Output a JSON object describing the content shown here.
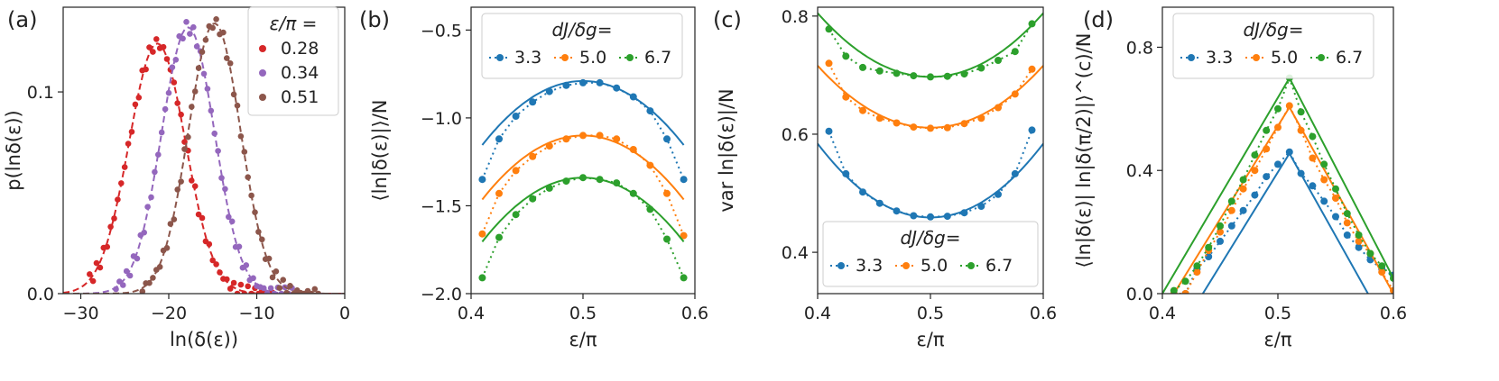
{
  "colors": {
    "red": "#d62728",
    "purple": "#9467bd",
    "brown": "#8c564b",
    "blue": "#1f77b4",
    "orange": "#ff7f0e",
    "green": "#2ca02c"
  },
  "chart_data": [
    {
      "panel": "(a)",
      "type": "scatter",
      "xlabel": "ln(δ(ε))",
      "ylabel": "p(lnδ(ε))",
      "xlim": [
        -32,
        0
      ],
      "ylim": [
        0,
        0.142
      ],
      "xticks": [
        -30,
        -20,
        -10,
        0
      ],
      "xtick_labels": [
        "−30",
        "−20",
        "−10",
        "0"
      ],
      "yticks": [
        0,
        0.1
      ],
      "ytick_labels": [
        "0.0",
        "0.1"
      ],
      "grid": false,
      "legend_title": "ε/π =",
      "legend_position": "top-right",
      "series": [
        {
          "name": "0.28",
          "color": "red",
          "peak_x": -21.3,
          "peak_y": 0.124,
          "sigma": 3.2,
          "x_range": [
            -29,
            -8
          ]
        },
        {
          "name": "0.34",
          "color": "purple",
          "peak_x": -17.8,
          "peak_y": 0.132,
          "sigma": 3.0,
          "x_range": [
            -26,
            -5.5
          ]
        },
        {
          "name": "0.51",
          "color": "brown",
          "peak_x": -14.8,
          "peak_y": 0.134,
          "sigma": 2.95,
          "x_range": [
            -23,
            -3
          ]
        }
      ]
    },
    {
      "panel": "(b)",
      "type": "line",
      "xlabel": "ε/π",
      "ylabel": "⟨ln|δ(ε)|⟩/N",
      "xlim": [
        0.4,
        0.6
      ],
      "ylim": [
        -2.0,
        -0.37
      ],
      "xticks": [
        0.4,
        0.5,
        0.6
      ],
      "xtick_labels": [
        "0.4",
        "0.5",
        "0.6"
      ],
      "yticks": [
        -2.0,
        -1.5,
        -1.0,
        -0.5
      ],
      "ytick_labels": [
        "−2.0",
        "−1.5",
        "−1.0",
        "−0.5"
      ],
      "grid": false,
      "legend_title": "dJ/δg=",
      "legend_position": "top",
      "x": [
        0.41,
        0.425,
        0.44,
        0.455,
        0.47,
        0.485,
        0.5,
        0.515,
        0.53,
        0.545,
        0.56,
        0.575,
        0.59
      ],
      "series": [
        {
          "name": "3.3",
          "color": "blue",
          "points": [
            -1.35,
            -1.12,
            -0.99,
            -0.91,
            -0.85,
            -0.815,
            -0.8,
            -0.8,
            -0.83,
            -0.88,
            -0.96,
            -1.12,
            -1.35
          ],
          "fit_peak": -0.79,
          "fit_curvature": 45,
          "fit_x": [
            0.41,
            0.59
          ]
        },
        {
          "name": "5.0",
          "color": "orange",
          "points": [
            -1.66,
            -1.43,
            -1.3,
            -1.22,
            -1.16,
            -1.12,
            -1.1,
            -1.1,
            -1.12,
            -1.18,
            -1.27,
            -1.43,
            -1.67
          ],
          "fit_peak": -1.1,
          "fit_curvature": 45,
          "fit_x": [
            0.41,
            0.59
          ]
        },
        {
          "name": "6.7",
          "color": "green",
          "points": [
            -1.91,
            -1.68,
            -1.55,
            -1.46,
            -1.4,
            -1.36,
            -1.34,
            -1.35,
            -1.37,
            -1.43,
            -1.52,
            -1.69,
            -1.91
          ],
          "fit_peak": -1.34,
          "fit_curvature": 45,
          "fit_x": [
            0.41,
            0.59
          ]
        }
      ]
    },
    {
      "panel": "(c)",
      "type": "line",
      "xlabel": "ε/π",
      "ylabel": "var ln|δ(ε)|/N",
      "xlim": [
        0.4,
        0.6
      ],
      "ylim": [
        0.33,
        0.815
      ],
      "xticks": [
        0.4,
        0.5,
        0.6
      ],
      "xtick_labels": [
        "0.4",
        "0.5",
        "0.6"
      ],
      "yticks": [
        0.4,
        0.6,
        0.8
      ],
      "ytick_labels": [
        "0.4",
        "0.6",
        "0.8"
      ],
      "grid": false,
      "legend_title": "dJ/δg=",
      "legend_position": "bottom",
      "x": [
        0.41,
        0.425,
        0.44,
        0.455,
        0.47,
        0.485,
        0.5,
        0.515,
        0.53,
        0.545,
        0.56,
        0.575,
        0.59
      ],
      "series": [
        {
          "name": "3.3",
          "color": "blue",
          "points": [
            0.605,
            0.533,
            0.502,
            0.483,
            0.47,
            0.462,
            0.46,
            0.461,
            0.467,
            0.478,
            0.498,
            0.533,
            0.607
          ],
          "fit_peak": 0.459,
          "fit_curvature": 12.5,
          "fit_x": [
            0.4,
            0.6
          ]
        },
        {
          "name": "5.0",
          "color": "orange",
          "points": [
            0.72,
            0.663,
            0.64,
            0.627,
            0.619,
            0.612,
            0.61,
            0.611,
            0.618,
            0.627,
            0.645,
            0.668,
            0.71
          ],
          "fit_peak": 0.611,
          "fit_curvature": 10.5,
          "fit_x": [
            0.4,
            0.6
          ]
        },
        {
          "name": "6.7",
          "color": "green",
          "points": [
            0.778,
            0.732,
            0.713,
            0.707,
            0.703,
            0.699,
            0.697,
            0.698,
            0.702,
            0.712,
            0.725,
            0.74,
            0.787
          ],
          "fit_peak": 0.697,
          "fit_curvature": 10.8,
          "fit_x": [
            0.4,
            0.6
          ]
        }
      ]
    },
    {
      "panel": "(d)",
      "type": "line",
      "xlabel": "ε/π",
      "ylabel": "⟨ln|δ(ε)| ln|δ(π/2)|⟩^(c)/N",
      "xlim": [
        0.4,
        0.6
      ],
      "ylim": [
        0,
        0.93
      ],
      "xticks": [
        0.4,
        0.5,
        0.6
      ],
      "xtick_labels": [
        "0.4",
        "0.5",
        "0.6"
      ],
      "yticks": [
        0,
        0.4,
        0.8
      ],
      "ytick_labels": [
        "0.0",
        "0.4",
        "0.8"
      ],
      "grid": false,
      "legend_title": "dJ/δg=",
      "legend_position": "top",
      "x": [
        0.41,
        0.42,
        0.43,
        0.44,
        0.45,
        0.46,
        0.47,
        0.48,
        0.49,
        0.5,
        0.51,
        0.52,
        0.53,
        0.54,
        0.55,
        0.56,
        0.57,
        0.58,
        0.59,
        0.6
      ],
      "series": [
        {
          "name": "3.3",
          "color": "blue",
          "points": [
            0.0,
            0.0,
            0.08,
            0.12,
            0.17,
            0.22,
            0.27,
            0.32,
            0.38,
            0.42,
            0.46,
            0.39,
            0.35,
            0.3,
            0.25,
            0.19,
            0.15,
            0.11,
            0.08,
            0.06
          ],
          "fit": [
            [
              0.435,
              0
            ],
            [
              0.51,
              0.455
            ],
            [
              0.578,
              0
            ]
          ]
        },
        {
          "name": "5.0",
          "color": "orange",
          "points": [
            0.0,
            0.0,
            0.07,
            0.14,
            0.2,
            0.27,
            0.34,
            0.4,
            0.47,
            0.54,
            0.61,
            0.53,
            0.44,
            0.37,
            0.31,
            0.23,
            0.17,
            0.13,
            0.07,
            0.01
          ],
          "fit": [
            [
              0.41,
              0
            ],
            [
              0.51,
              0.605
            ],
            [
              0.6,
              0
            ]
          ]
        },
        {
          "name": "6.7",
          "color": "green",
          "points": [
            0.01,
            0.04,
            0.09,
            0.15,
            0.22,
            0.3,
            0.37,
            0.45,
            0.53,
            0.6,
            0.7,
            0.59,
            0.51,
            0.42,
            0.34,
            0.26,
            0.19,
            0.13,
            0.09,
            0.05
          ],
          "fit": [
            [
              0.4,
              0
            ],
            [
              0.51,
              0.7
            ],
            [
              0.6,
              0.05
            ]
          ]
        }
      ]
    }
  ]
}
